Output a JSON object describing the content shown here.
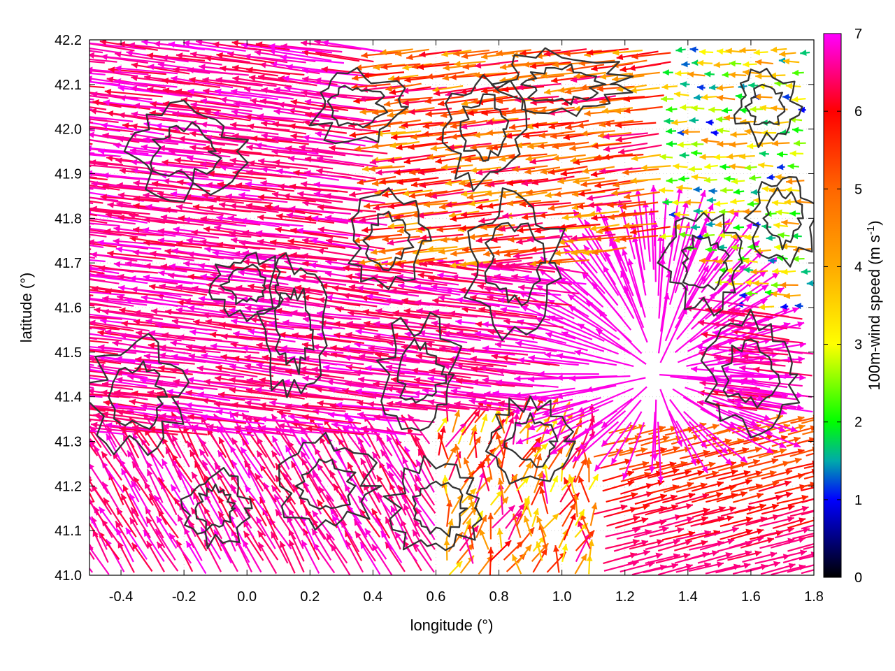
{
  "chart_data": {
    "type": "vector-field",
    "title": "",
    "xlabel": "longitude (°)",
    "ylabel": "latitude (°)",
    "xlim": [
      -0.5,
      1.8
    ],
    "ylim": [
      41.0,
      42.2
    ],
    "xticks": [
      -0.4,
      -0.2,
      0.0,
      0.2,
      0.4,
      0.6,
      0.8,
      1.0,
      1.2,
      1.4,
      1.6,
      1.8
    ],
    "xtick_labels": [
      "-0.4",
      "-0.2",
      "0.0",
      "0.2",
      "0.4",
      "0.6",
      "0.8",
      "1.0",
      "1.2",
      "1.4",
      "1.6",
      "1.8"
    ],
    "yticks": [
      41.0,
      41.1,
      41.2,
      41.3,
      41.4,
      41.5,
      41.6,
      41.7,
      41.8,
      41.9,
      42.0,
      42.1,
      42.2
    ],
    "ytick_labels": [
      "41.0",
      "41.1",
      "41.2",
      "41.3",
      "41.4",
      "41.5",
      "41.6",
      "41.7",
      "41.8",
      "41.9",
      "42.0",
      "42.1",
      "42.2"
    ],
    "grid": true,
    "colorbar": {
      "label": "100m-wind speed (m s",
      "label_sup": "-1",
      "label_end": ")",
      "range": [
        0,
        7
      ],
      "ticks": [
        0,
        1,
        2,
        3,
        4,
        5,
        6,
        7
      ],
      "tick_labels": [
        "0",
        "1",
        "2",
        "3",
        "4",
        "5",
        "6",
        "7"
      ],
      "stops": [
        {
          "value": 0,
          "color": "#000000"
        },
        {
          "value": 1,
          "color": "#0000ff"
        },
        {
          "value": 1.5,
          "color": "#00aaaa"
        },
        {
          "value": 2,
          "color": "#00ff00"
        },
        {
          "value": 3,
          "color": "#ffff00"
        },
        {
          "value": 4,
          "color": "#ffaa00"
        },
        {
          "value": 5,
          "color": "#ff6600"
        },
        {
          "value": 6,
          "color": "#ff0000"
        },
        {
          "value": 7,
          "color": "#ff00ff"
        }
      ]
    },
    "vector_regions": [
      {
        "region": "west and north-west",
        "lon": [
          -0.5,
          0.6
        ],
        "lat": [
          41.3,
          42.2
        ],
        "direction": "westward",
        "speed": 7
      },
      {
        "region": "south-west",
        "lon": [
          -0.5,
          0.6
        ],
        "lat": [
          41.0,
          41.3
        ],
        "direction": "north-westward",
        "speed": 6.8
      },
      {
        "region": "north-central",
        "lon": [
          0.4,
          1.2
        ],
        "lat": [
          41.7,
          42.2
        ],
        "direction": "westward",
        "speed": 5.5
      },
      {
        "region": "north-east",
        "lon": [
          1.2,
          1.8
        ],
        "lat": [
          41.6,
          42.2
        ],
        "direction": "westward",
        "speed": 2.5
      },
      {
        "region": "central divergence",
        "lon": [
          1.0,
          1.5
        ],
        "lat": [
          41.35,
          41.75
        ],
        "direction": "radial from 1.3E 41.45N",
        "speed": 7
      },
      {
        "region": "south-east",
        "lon": [
          1.1,
          1.8
        ],
        "lat": [
          41.0,
          41.35
        ],
        "direction": "north-eastward",
        "speed": 5.5
      }
    ],
    "contours": "terrain elevation lines (dark grey)"
  }
}
